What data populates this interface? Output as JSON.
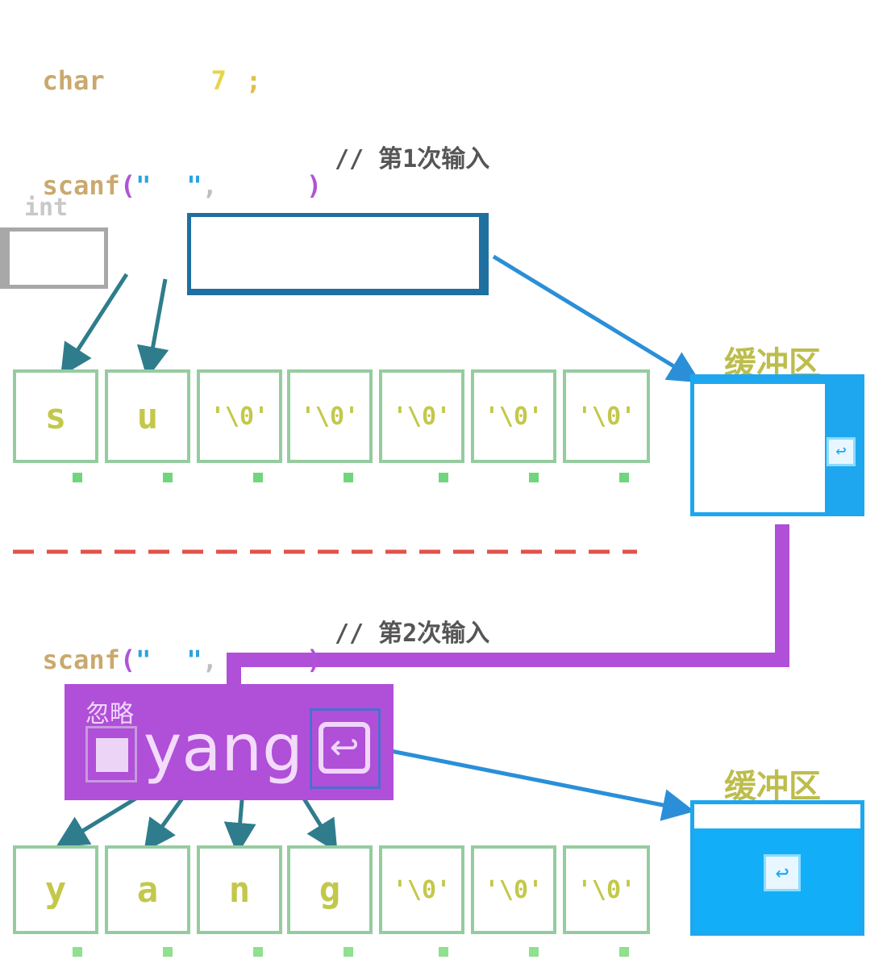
{
  "code": {
    "line1": {
      "keyword": "char",
      "value": "7",
      "terminator": ";"
    },
    "scanf1": {
      "keyword": "scanf",
      "comment": "// 第1次输入"
    },
    "scanf2": {
      "keyword": "scanf",
      "comment": "// 第2次输入"
    }
  },
  "labels": {
    "top_small": "int"
  },
  "array1": {
    "cells": [
      "s",
      "u",
      "'\\0'",
      "'\\0'",
      "'\\0'",
      "'\\0'",
      "'\\0'"
    ]
  },
  "array2": {
    "cells": [
      "y",
      "a",
      "n",
      "g",
      "'\\0'",
      "'\\0'",
      "'\\0'"
    ]
  },
  "buffer1": {
    "title": "缓冲区",
    "return_icon": "return-icon"
  },
  "buffer2": {
    "title": "缓冲区",
    "return_icon": "return-icon"
  },
  "ignore": {
    "label": "忽略",
    "text": "yang",
    "return_icon": "return-icon"
  },
  "colors": {
    "divider": "#e0534a",
    "arrow": "#2f7d8c",
    "buffer_border": "#1ea7ef",
    "purple": "#b04fd8",
    "cell_border": "#95cc9f"
  }
}
